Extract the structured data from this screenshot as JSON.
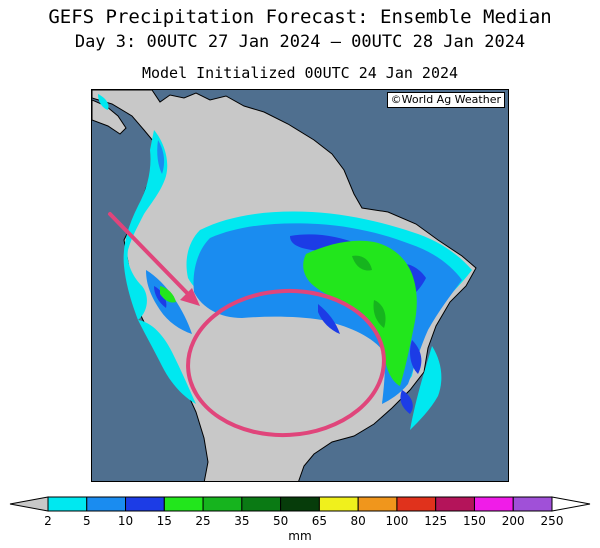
{
  "header": {
    "title": "GEFS Precipitation Forecast: Ensemble Median",
    "valid_period": "Day 3: 00UTC 27 Jan 2024 — 00UTC 28 Jan 2024",
    "initialized": "Model Initialized 00UTC 24 Jan 2024"
  },
  "map": {
    "credit": "©World Ag Weather",
    "ocean_color": "#4f6f8f",
    "land_color": "#c8c8c8",
    "annotation_color": "#e0457b"
  },
  "legend": {
    "units": "mm",
    "ticks": [
      "2",
      "5",
      "10",
      "15",
      "25",
      "35",
      "50",
      "65",
      "80",
      "100",
      "125",
      "150",
      "200",
      "250"
    ],
    "colors": [
      "#c8c8c8",
      "#00e8f0",
      "#1a8cf0",
      "#1c3ce6",
      "#22e61c",
      "#16b41e",
      "#0a7a14",
      "#063c0a",
      "#f0f01c",
      "#f0961c",
      "#e0321c",
      "#b4145a",
      "#f01ce8",
      "#a050d8",
      "#ffffff"
    ]
  }
}
